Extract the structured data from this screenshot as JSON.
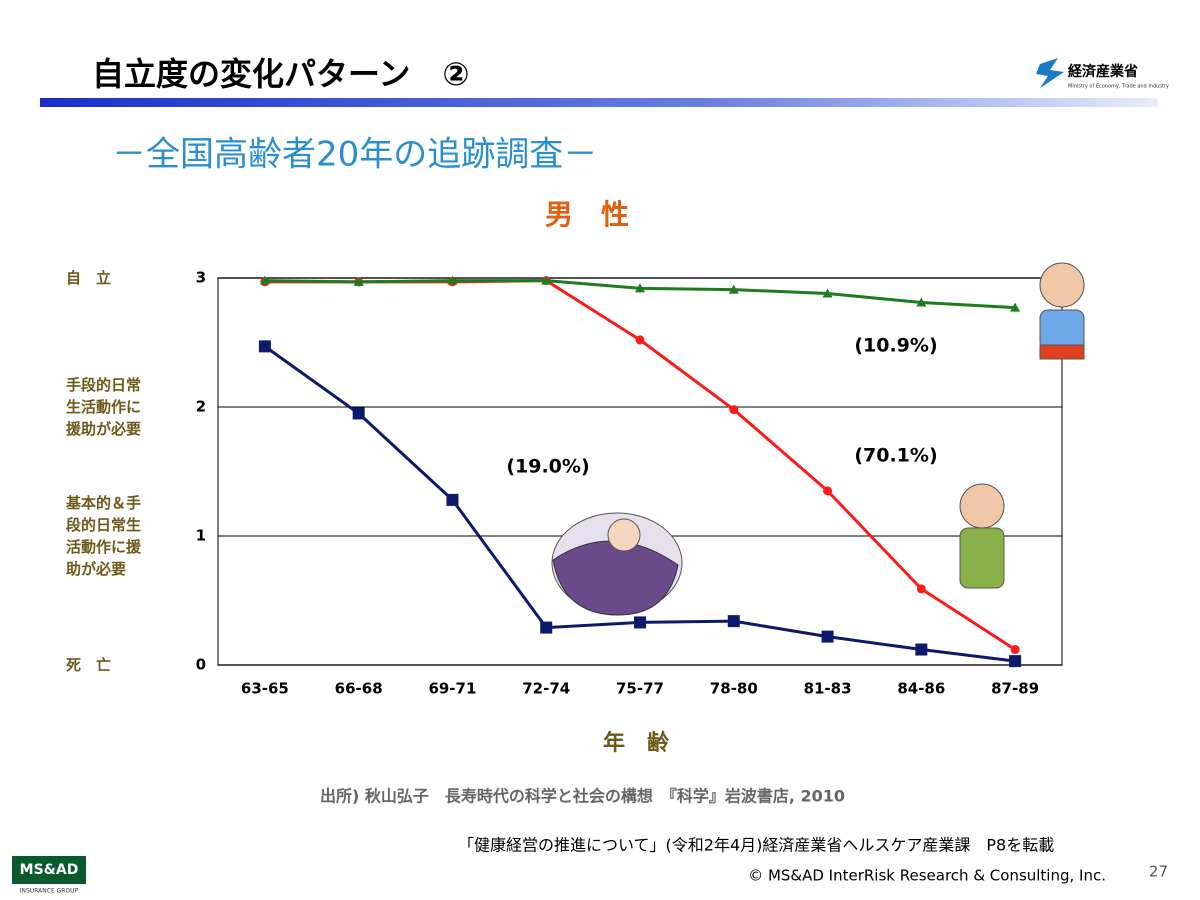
{
  "slide": {
    "title": "自立度の変化パターン　②",
    "logo_text": "経済産業省",
    "logo_subtext": "Ministry of Economy, Trade and Industry",
    "subtitle": "－全国高齢者20年の追跡調査－",
    "source": "出所) 秋山弘子　長寿時代の科学と社会の構想　『科学』岩波書店, 2010",
    "note": "「健康経営の推進について」(令和2年4月)経済産業省ヘルスケア産業課　P8を転載",
    "copyright": "© MS&AD InterRisk Research & Consulting, Inc.",
    "page_number": 27,
    "company_logo": "MS&AD",
    "company_logo_sub": "INSURANCE GROUP"
  },
  "chart_data": {
    "type": "line",
    "title": "男　性",
    "x_label": "年　齢",
    "categories": [
      "63-65",
      "66-68",
      "69-71",
      "72-74",
      "75-77",
      "78-80",
      "81-83",
      "84-86",
      "87-89"
    ],
    "y_level_labels": [
      "死　亡",
      "基本的＆手\n段的日常生\n活動作に援\n助が必要",
      "手段的日常\n生活動作に\n援助が必要",
      "自　立"
    ],
    "series": [
      {
        "color": "#ff1a1a",
        "marker": "circle",
        "annotation": "(70.1%)",
        "values": [
          2.97,
          2.97,
          2.97,
          2.98,
          2.52,
          1.98,
          1.35,
          0.59,
          0.12
        ]
      },
      {
        "color": "#1e7b1e",
        "marker": "triangle",
        "annotation": "(10.9%)",
        "values": [
          2.98,
          2.97,
          2.98,
          2.98,
          2.92,
          2.91,
          2.88,
          2.81,
          2.77
        ]
      },
      {
        "color": "#0d1a6b",
        "marker": "square",
        "annotation": "(19.0%)",
        "values": [
          2.47,
          1.95,
          1.28,
          0.29,
          0.33,
          0.34,
          0.22,
          0.12,
          0.03
        ]
      }
    ],
    "ylim": [
      0,
      3
    ],
    "yticks": [
      0,
      1,
      2,
      3
    ],
    "grid": true
  }
}
